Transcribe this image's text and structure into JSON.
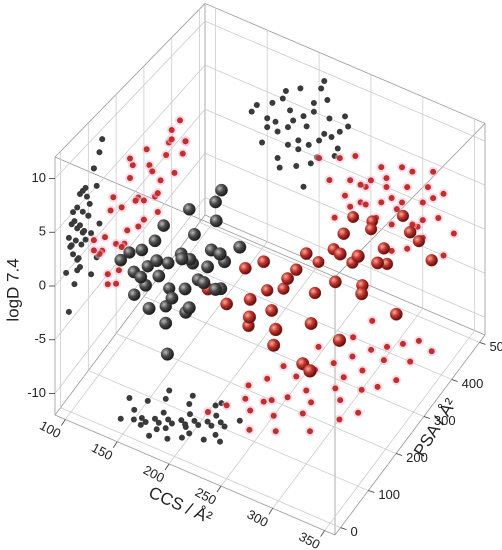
{
  "chart_data": {
    "type": "scatter3d",
    "xlabel": "CCS / Å²",
    "ylabel": "PSA / Å²",
    "zlabel": "logD 7.4",
    "xlim": [
      90,
      360
    ],
    "ylim": [
      -20,
      520
    ],
    "zlim": [
      -12,
      12
    ],
    "xticks": [
      100,
      150,
      200,
      250,
      300,
      350
    ],
    "yticks": [
      0,
      100,
      200,
      300,
      400,
      500
    ],
    "zticks": [
      -10,
      -5,
      0,
      5,
      10
    ],
    "grid": true,
    "series": [
      {
        "color": "#3a3a3a",
        "x": [
          140,
          150,
          155,
          160,
          165,
          170,
          175,
          180,
          185,
          190,
          195,
          200,
          205,
          210,
          215,
          220,
          145,
          158,
          168,
          178,
          188,
          198,
          208,
          218,
          228,
          150,
          162,
          172,
          182,
          192,
          202,
          212,
          170,
          185,
          195,
          205,
          225,
          135,
          160,
          180
        ],
        "y": [
          30,
          40,
          50,
          45,
          60,
          55,
          70,
          65,
          80,
          75,
          90,
          85,
          100,
          95,
          110,
          105,
          60,
          35,
          80,
          50,
          100,
          60,
          120,
          80,
          130,
          90,
          110,
          40,
          120,
          70,
          140,
          60,
          20,
          30,
          45,
          150,
          70,
          80,
          130,
          140
        ],
        "z": [
          3,
          2,
          4,
          1,
          5,
          2,
          3,
          0,
          4,
          1,
          6,
          2,
          3,
          5,
          1,
          4,
          -1,
          2,
          6,
          -2,
          3,
          0,
          7,
          2,
          5,
          1,
          -3,
          4,
          7,
          -1,
          8,
          3,
          0,
          -4,
          5,
          9,
          6,
          2,
          -2,
          1
        ]
      },
      {
        "color": "#c0302a",
        "x": [
          200,
          210,
          220,
          230,
          240,
          250,
          260,
          270,
          280,
          290,
          300,
          310,
          320,
          215,
          225,
          235,
          245,
          255,
          265,
          275,
          285,
          295,
          305,
          315,
          250,
          260,
          270,
          280,
          290,
          300,
          230,
          240,
          320,
          330,
          310,
          285,
          265,
          245,
          270,
          300
        ],
        "y": [
          120,
          150,
          180,
          160,
          200,
          220,
          250,
          230,
          280,
          260,
          300,
          320,
          350,
          210,
          240,
          190,
          270,
          300,
          330,
          360,
          390,
          410,
          430,
          450,
          170,
          140,
          200,
          310,
          340,
          380,
          280,
          120,
          400,
          440,
          250,
          170,
          400,
          350,
          450,
          220
        ],
        "z": [
          0,
          -2,
          1,
          -1,
          -3,
          0,
          2,
          -4,
          -1,
          3,
          -2,
          1,
          -5,
          -6,
          -3,
          2,
          -1,
          -4,
          0,
          -2,
          1,
          -3,
          2,
          -1,
          -5,
          -2,
          -7,
          3,
          -3,
          0,
          -4,
          -1,
          2,
          -2,
          4,
          -6,
          1,
          -3,
          -1,
          -4
        ]
      }
    ]
  }
}
